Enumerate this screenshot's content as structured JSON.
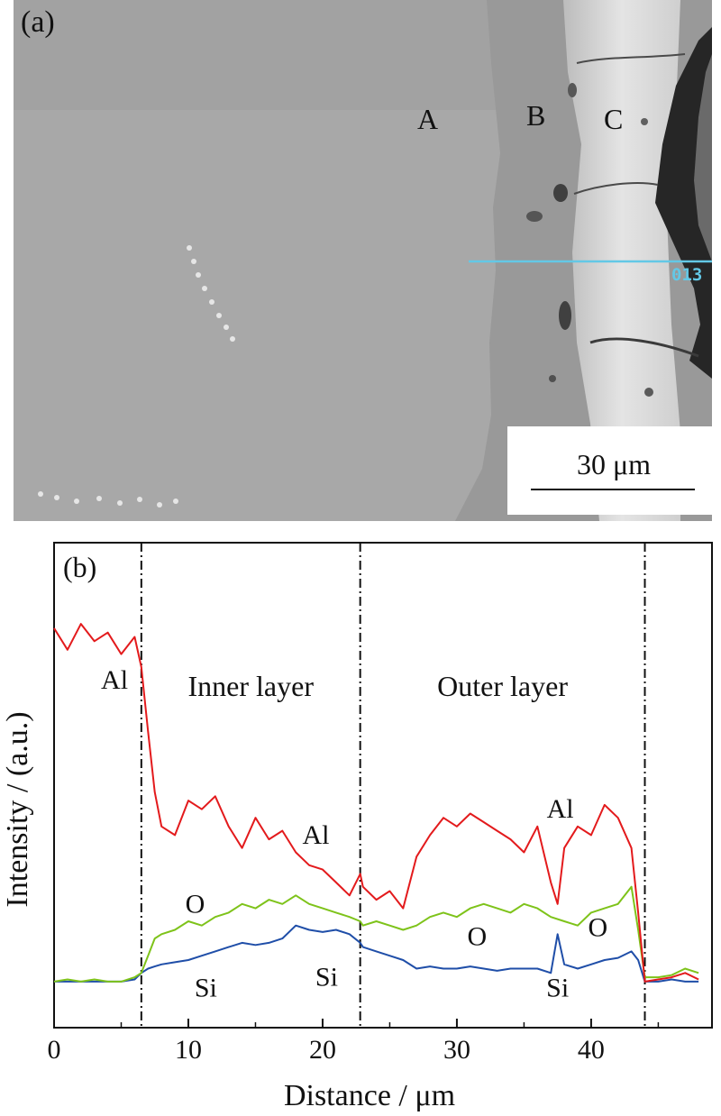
{
  "panel_a": {
    "label": "(a)",
    "regions": [
      "A",
      "B",
      "C"
    ],
    "scale_bar": "30 μm",
    "line_scan_marker": "013"
  },
  "chart_data": {
    "type": "line",
    "panel_label": "(b)",
    "xlabel": "Distance / μm",
    "ylabel": "Intensity / (a.u.)",
    "xlim": [
      0,
      49
    ],
    "ylim": [
      0,
      100
    ],
    "xticks": [
      0,
      10,
      20,
      30,
      40
    ],
    "yticks_shown": false,
    "grid": false,
    "layer_boundaries": [
      6.5,
      22.8,
      44
    ],
    "region_labels": [
      "Inner layer",
      "Outer layer"
    ],
    "series": [
      {
        "name": "Al",
        "color": "#e31a1c",
        "x": [
          0,
          1,
          2,
          3,
          4,
          5,
          6,
          6.5,
          7,
          7.5,
          8,
          9,
          10,
          11,
          12,
          13,
          14,
          15,
          16,
          17,
          18,
          19,
          20,
          21,
          22,
          22.8,
          23,
          24,
          25,
          26,
          27,
          28,
          29,
          30,
          31,
          32,
          33,
          34,
          35,
          36,
          37,
          37.5,
          38,
          39,
          40,
          41,
          42,
          43,
          43.5,
          44,
          45,
          46,
          47,
          48
        ],
        "y": [
          86,
          81,
          87,
          83,
          85,
          80,
          84,
          77,
          62,
          48,
          40,
          38,
          46,
          44,
          47,
          40,
          35,
          42,
          37,
          39,
          34,
          31,
          30,
          27,
          24,
          29,
          26,
          23,
          25,
          21,
          33,
          38,
          42,
          40,
          43,
          41,
          39,
          37,
          34,
          40,
          27,
          22,
          35,
          40,
          38,
          45,
          42,
          35,
          20,
          4,
          4.5,
          5,
          6,
          4.5
        ]
      },
      {
        "name": "O",
        "color": "#7ec31a",
        "x": [
          0,
          1,
          2,
          3,
          4,
          5,
          6,
          6.5,
          7,
          7.5,
          8,
          9,
          10,
          11,
          12,
          13,
          14,
          15,
          16,
          17,
          18,
          19,
          20,
          21,
          22,
          22.8,
          23,
          24,
          25,
          26,
          27,
          28,
          29,
          30,
          31,
          32,
          33,
          34,
          35,
          36,
          37,
          38,
          39,
          40,
          41,
          42,
          43,
          43.5,
          44,
          45,
          46,
          47,
          48
        ],
        "y": [
          4,
          4.5,
          4,
          4.5,
          4,
          4,
          5,
          6,
          10,
          14,
          15,
          16,
          18,
          17,
          19,
          20,
          22,
          21,
          23,
          22,
          24,
          22,
          21,
          20,
          19,
          18,
          17,
          18,
          17,
          16,
          17,
          19,
          20,
          19,
          21,
          22,
          21,
          20,
          22,
          21,
          19,
          18,
          17,
          20,
          21,
          22,
          26,
          16,
          5,
          5,
          5.5,
          7,
          6
        ]
      },
      {
        "name": "Si",
        "color": "#1f4ea8",
        "x": [
          0,
          1,
          2,
          3,
          4,
          5,
          6,
          6.5,
          7,
          7.5,
          8,
          9,
          10,
          11,
          12,
          13,
          14,
          15,
          16,
          17,
          18,
          19,
          20,
          21,
          22,
          22.8,
          23,
          24,
          25,
          26,
          27,
          28,
          29,
          30,
          31,
          32,
          33,
          34,
          35,
          36,
          37,
          37.5,
          38,
          39,
          40,
          41,
          42,
          43,
          43.5,
          44,
          45,
          46,
          47,
          48
        ],
        "y": [
          4,
          4,
          4,
          4,
          4,
          4,
          4.5,
          6,
          7,
          7.5,
          8,
          8.5,
          9,
          10,
          11,
          12,
          13,
          12.5,
          13,
          14,
          17,
          16,
          15.5,
          16,
          15,
          13,
          12,
          11,
          10,
          9,
          7,
          7.5,
          7,
          7,
          7.5,
          7,
          6.5,
          7,
          7,
          7,
          6,
          15,
          8,
          7,
          8,
          9,
          9.5,
          11,
          9,
          4,
          4,
          4.5,
          4,
          4
        ]
      }
    ],
    "annotations": [
      {
        "text": "Al",
        "x": 4.5,
        "y": 72
      },
      {
        "text": "Al",
        "x": 19.5,
        "y": 36
      },
      {
        "text": "Al",
        "x": 37.7,
        "y": 42
      },
      {
        "text": "O",
        "x": 10.5,
        "y": 20
      },
      {
        "text": "O",
        "x": 31.5,
        "y": 12.5
      },
      {
        "text": "O",
        "x": 40.5,
        "y": 14.5
      },
      {
        "text": "Si",
        "x": 11.3,
        "y": 0.5
      },
      {
        "text": "Si",
        "x": 20.3,
        "y": 3
      },
      {
        "text": "Si",
        "x": 37.5,
        "y": 0.5
      }
    ]
  }
}
